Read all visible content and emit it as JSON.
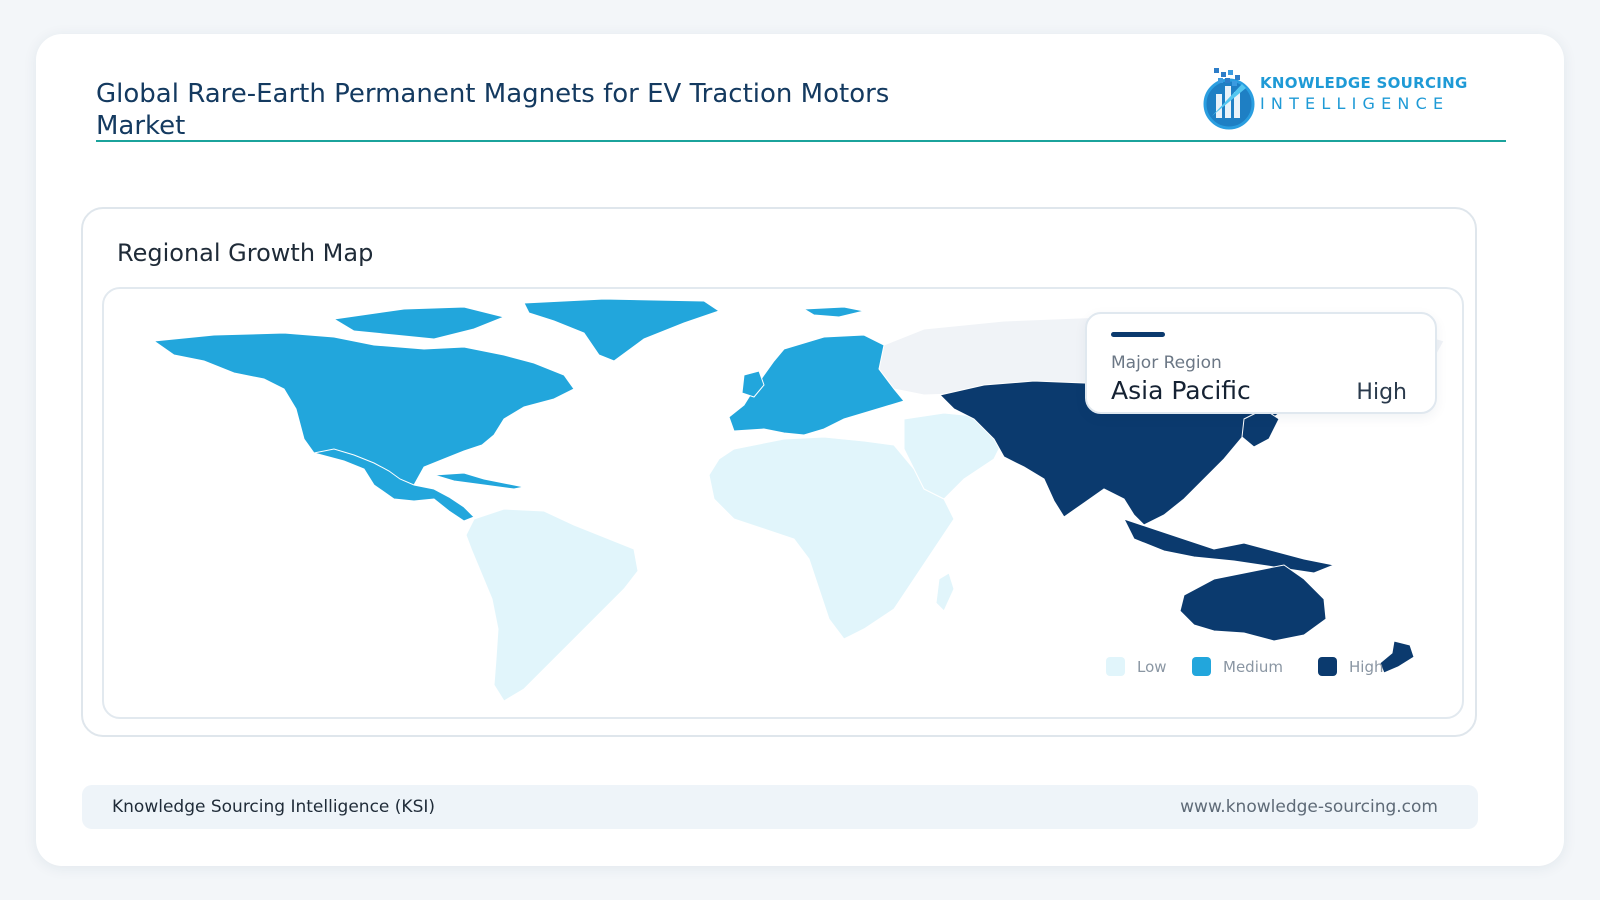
{
  "header": {
    "title": "Global Rare-Earth Permanent Magnets for EV Traction Motors Market",
    "logo_line1": "KNOWLEDGE SOURCING",
    "logo_line2": "INTELLIGENCE"
  },
  "panel": {
    "title": "Regional Growth Map"
  },
  "callout": {
    "label": "Major Region",
    "region": "Asia Pacific",
    "level": "High"
  },
  "legend": [
    {
      "label": "Low",
      "color": "#e1f5fb"
    },
    {
      "label": "Medium",
      "color": "#22a6dc"
    },
    {
      "label": "High",
      "color": "#0b3a6e"
    }
  ],
  "colors": {
    "low": "#e1f5fb",
    "medium": "#22a6dc",
    "high": "#0b3a6e",
    "nodata": "#f0f3f7",
    "accent": "#1ba39c"
  },
  "regions": [
    {
      "name": "North America",
      "level": "Medium"
    },
    {
      "name": "Europe",
      "level": "Medium"
    },
    {
      "name": "Asia Pacific",
      "level": "High"
    },
    {
      "name": "South America",
      "level": "Low"
    },
    {
      "name": "Middle East and Africa",
      "level": "Low"
    }
  ],
  "footer": {
    "left": "Knowledge Sourcing Intelligence (KSI)",
    "right": "www.knowledge-sourcing.com"
  }
}
